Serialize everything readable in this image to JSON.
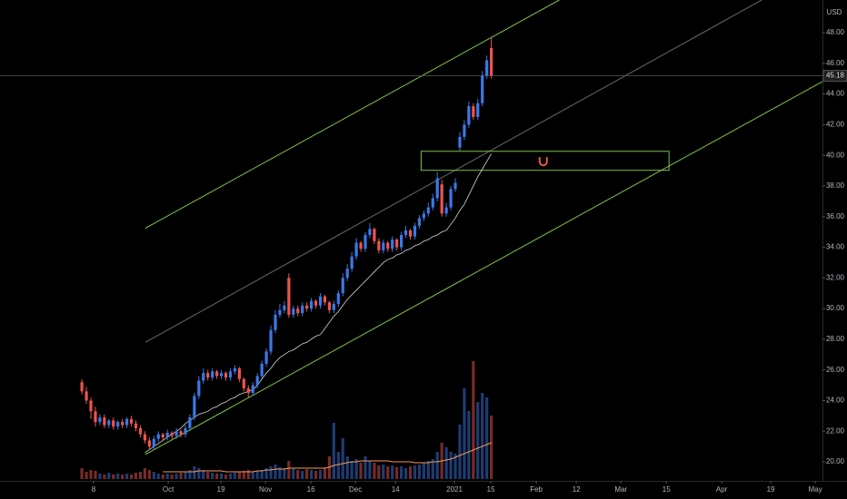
{
  "chart_data": {
    "type": "candlestick",
    "currency": "USD",
    "last": 45.18,
    "up_color": "#3b78e7",
    "down_color": "#ef5350",
    "ma_color": "#d8d8d8",
    "volume_ma_color": "#f39a5a",
    "open": [
      25.2,
      24.6,
      24.0,
      23.3,
      22.6,
      22.9,
      22.4,
      22.7,
      22.3,
      22.6,
      22.4,
      22.8,
      22.5,
      22.2,
      21.8,
      21.4,
      21.0,
      21.5,
      21.8,
      21.6,
      21.9,
      21.7,
      22.0,
      21.8,
      22.2,
      22.9,
      24.3,
      25.3,
      25.8,
      25.5,
      25.9,
      25.6,
      25.8,
      25.5,
      25.9,
      26.1,
      25.4,
      24.8,
      24.5,
      25.0,
      25.6,
      26.4,
      27.2,
      28.6,
      29.6,
      29.9,
      32.0,
      29.6,
      30.0,
      29.7,
      30.2,
      30.0,
      30.5,
      30.2,
      30.8,
      30.4,
      29.9,
      30.3,
      31.0,
      32.0,
      32.6,
      33.4,
      34.3,
      33.9,
      34.8,
      35.2,
      34.4,
      33.8,
      34.3,
      33.9,
      34.5,
      34.0,
      34.8,
      35.1,
      34.7,
      35.4,
      35.9,
      36.2,
      36.6,
      37.2,
      38.1,
      36.2,
      36.6,
      37.8,
      40.5,
      41.2,
      42.0,
      43.2,
      42.5,
      43.4,
      45.2,
      47.0
    ],
    "close": [
      24.6,
      24.0,
      23.3,
      22.6,
      22.9,
      22.4,
      22.7,
      22.3,
      22.6,
      22.4,
      22.8,
      22.5,
      22.2,
      21.8,
      21.4,
      21.0,
      21.5,
      21.8,
      21.6,
      21.9,
      21.7,
      22.0,
      21.8,
      22.2,
      22.9,
      24.3,
      25.3,
      25.8,
      25.5,
      25.9,
      25.6,
      25.8,
      25.5,
      25.9,
      26.1,
      25.4,
      24.8,
      24.5,
      25.0,
      25.6,
      26.4,
      27.2,
      28.6,
      29.6,
      29.9,
      30.2,
      29.6,
      30.0,
      29.7,
      30.2,
      30.0,
      30.5,
      30.2,
      30.8,
      30.4,
      29.9,
      30.3,
      31.0,
      32.0,
      32.6,
      33.4,
      34.3,
      33.9,
      34.8,
      35.2,
      34.4,
      33.8,
      34.3,
      33.9,
      34.5,
      34.0,
      34.8,
      35.1,
      34.7,
      35.4,
      35.9,
      36.2,
      36.6,
      37.2,
      38.5,
      36.2,
      36.6,
      37.8,
      38.2,
      41.2,
      42.0,
      43.2,
      42.5,
      43.4,
      45.2,
      46.2,
      45.2
    ],
    "high": [
      25.4,
      24.9,
      24.2,
      23.6,
      23.1,
      23.1,
      22.8,
      22.9,
      22.7,
      22.8,
      22.9,
      23.0,
      22.7,
      22.4,
      22.0,
      21.6,
      21.7,
      22.0,
      21.9,
      22.1,
      22.0,
      22.2,
      22.1,
      22.4,
      23.1,
      24.5,
      25.6,
      26.1,
      26.0,
      26.1,
      26.0,
      26.0,
      25.9,
      26.1,
      26.3,
      26.2,
      25.5,
      25.0,
      25.2,
      25.8,
      26.6,
      27.4,
      28.9,
      29.9,
      30.3,
      30.5,
      32.3,
      30.2,
      30.2,
      30.4,
      30.4,
      30.7,
      30.6,
      31.0,
      30.9,
      30.5,
      30.5,
      31.2,
      32.3,
      32.9,
      33.7,
      34.6,
      34.4,
      35.0,
      35.6,
      35.3,
      34.6,
      34.5,
      34.4,
      34.7,
      34.6,
      35.0,
      35.4,
      35.2,
      35.6,
      36.1,
      36.4,
      36.9,
      37.5,
      38.9,
      38.4,
      36.9,
      38.0,
      38.5,
      41.5,
      42.3,
      43.5,
      43.4,
      43.7,
      45.5,
      46.5,
      47.7
    ],
    "low": [
      24.4,
      23.8,
      22.8,
      22.3,
      22.4,
      22.2,
      22.2,
      22.1,
      22.1,
      22.2,
      22.2,
      22.3,
      22.0,
      21.6,
      21.2,
      20.8,
      20.8,
      21.3,
      21.4,
      21.4,
      21.5,
      21.5,
      21.6,
      21.6,
      22.0,
      22.7,
      24.1,
      25.1,
      25.3,
      25.3,
      25.4,
      25.4,
      25.3,
      25.3,
      25.7,
      25.2,
      24.6,
      24.2,
      24.3,
      24.8,
      25.4,
      26.2,
      27.0,
      28.4,
      29.4,
      29.7,
      29.4,
      29.4,
      29.5,
      29.5,
      29.8,
      29.8,
      30.0,
      30.0,
      30.2,
      29.7,
      29.7,
      30.1,
      30.8,
      31.8,
      32.4,
      33.2,
      33.7,
      33.7,
      34.6,
      34.2,
      33.6,
      33.6,
      33.7,
      33.7,
      33.8,
      33.8,
      34.6,
      34.5,
      34.5,
      35.2,
      35.7,
      36.0,
      36.4,
      37.0,
      36.0,
      36.0,
      36.4,
      37.6,
      40.3,
      41.0,
      41.8,
      42.3,
      42.3,
      43.2,
      45.0,
      45.0
    ],
    "volume": [
      12,
      8,
      10,
      9,
      6,
      5,
      7,
      5,
      6,
      5,
      6,
      5,
      7,
      8,
      12,
      10,
      8,
      6,
      5,
      6,
      5,
      6,
      7,
      8,
      10,
      14,
      12,
      10,
      8,
      7,
      6,
      6,
      5,
      6,
      7,
      8,
      9,
      10,
      8,
      9,
      10,
      12,
      14,
      16,
      13,
      12,
      20,
      12,
      10,
      9,
      11,
      10,
      9,
      10,
      12,
      25,
      62,
      30,
      45,
      25,
      20,
      22,
      18,
      25,
      20,
      18,
      15,
      16,
      14,
      15,
      13,
      14,
      12,
      14,
      15,
      16,
      18,
      20,
      22,
      30,
      40,
      35,
      30,
      28,
      60,
      100,
      75,
      130,
      85,
      95,
      90,
      70
    ],
    "vlim": [
      0,
      135
    ],
    "ma": [
      null,
      null,
      null,
      null,
      null,
      null,
      null,
      null,
      null,
      null,
      null,
      null,
      null,
      null,
      20.6,
      20.8,
      21.0,
      21.2,
      21.4,
      21.6,
      21.8,
      22.0,
      22.2,
      22.5,
      22.7,
      22.9,
      23.1,
      23.2,
      23.3,
      23.5,
      23.6,
      23.8,
      23.9,
      24.1,
      24.2,
      24.4,
      24.5,
      24.6,
      24.7,
      25.0,
      25.4,
      25.8,
      26.1,
      26.5,
      26.8,
      27.0,
      27.2,
      27.3,
      27.5,
      27.7,
      27.8,
      28.0,
      28.2,
      28.3,
      28.7,
      29.1,
      29.5,
      29.8,
      30.2,
      30.6,
      30.9,
      31.2,
      31.5,
      31.8,
      32.1,
      32.4,
      32.7,
      33.0,
      33.2,
      33.3,
      33.5,
      33.6,
      33.8,
      33.9,
      34.1,
      34.2,
      34.4,
      34.5,
      34.7,
      34.8,
      35.0,
      35.1,
      35.5,
      35.9,
      36.4,
      36.8,
      37.4,
      38.0,
      38.6,
      39.1,
      39.6,
      40.1
    ],
    "volume_ma": [
      null,
      null,
      null,
      null,
      null,
      null,
      null,
      null,
      null,
      null,
      null,
      null,
      null,
      null,
      null,
      null,
      null,
      null,
      8,
      8,
      8,
      8,
      8,
      8,
      8,
      8,
      9,
      9,
      9,
      9,
      9,
      9,
      8,
      8,
      8,
      8,
      8,
      8,
      8,
      9,
      9,
      10,
      10,
      11,
      11,
      11,
      12,
      12,
      12,
      12,
      12,
      12,
      12,
      12,
      12,
      13,
      15,
      16,
      17,
      18,
      19,
      19,
      20,
      20,
      20,
      20,
      20,
      20,
      20,
      19,
      19,
      19,
      19,
      19,
      18,
      18,
      18,
      18,
      19,
      19,
      20,
      21,
      22,
      24,
      26,
      28,
      30,
      32,
      34,
      36,
      38,
      40
    ],
    "xlim": [
      -18.2,
      164.6
    ],
    "xticks": [
      {
        "value": 2.6,
        "label": "8"
      },
      {
        "value": 19.2,
        "label": "Oct"
      },
      {
        "value": 30.9,
        "label": "19"
      },
      {
        "value": 40.8,
        "label": "Nov"
      },
      {
        "value": 50.9,
        "label": "16"
      },
      {
        "value": 60.8,
        "label": "Dec"
      },
      {
        "value": 69.7,
        "label": "14"
      },
      {
        "value": 82.8,
        "label": "2021"
      },
      {
        "value": 90.9,
        "label": "15"
      },
      {
        "value": 101.0,
        "label": "Feb"
      },
      {
        "value": 109.9,
        "label": "12"
      },
      {
        "value": 119.8,
        "label": "Mar"
      },
      {
        "value": 129.9,
        "label": "15"
      },
      {
        "value": 142.2,
        "label": "Apr"
      },
      {
        "value": 153.1,
        "label": "19"
      },
      {
        "value": 163.0,
        "label": "May"
      }
    ],
    "ylim": [
      18.88,
      50.13
    ],
    "yticks": [
      {
        "value": 20,
        "label": "20.00"
      },
      {
        "value": 22,
        "label": "22.00"
      },
      {
        "value": 24,
        "label": "24.00"
      },
      {
        "value": 26,
        "label": "26.00"
      },
      {
        "value": 28,
        "label": "28.00"
      },
      {
        "value": 30,
        "label": "30.00"
      },
      {
        "value": 32,
        "label": "32.00"
      },
      {
        "value": 34,
        "label": "34.00"
      },
      {
        "value": 36,
        "label": "36.00"
      },
      {
        "value": 38,
        "label": "38.00"
      },
      {
        "value": 40,
        "label": "40.00"
      },
      {
        "value": 42,
        "label": "42.00"
      },
      {
        "value": 44,
        "label": "44.00"
      },
      {
        "value": 46,
        "label": "46.00"
      },
      {
        "value": 48,
        "label": "48.00"
      }
    ],
    "trend_lines": [
      {
        "color": "#7fc34a",
        "points": [
          [
            14.1,
            35.24
          ],
          [
            106.1,
            50.13
          ]
        ]
      },
      {
        "color": "#6a6a6a",
        "points": [
          [
            14.1,
            27.8
          ],
          [
            151.1,
            50.13
          ]
        ]
      },
      {
        "color": "#7fc34a",
        "points": [
          [
            14.1,
            20.48
          ],
          [
            164.6,
            44.81
          ]
        ]
      }
    ],
    "zone": {
      "color": "#7fc34a",
      "x": [
        75.4,
        130.5
      ],
      "y": [
        39.02,
        40.26
      ]
    }
  }
}
